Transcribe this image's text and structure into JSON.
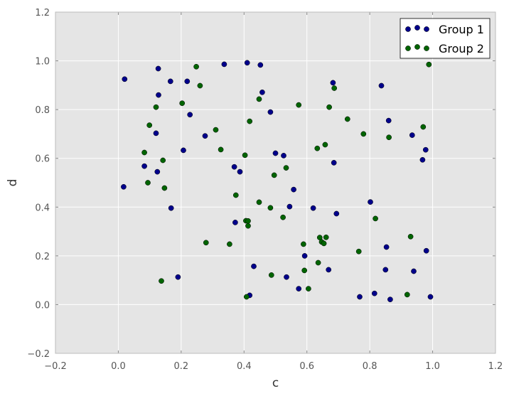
{
  "chart_data": {
    "type": "scatter",
    "title": "",
    "xlabel": "c",
    "ylabel": "d",
    "xlim": [
      -0.2,
      1.2
    ],
    "ylim": [
      -0.2,
      1.2
    ],
    "xticks": [
      "−0.2",
      "0.0",
      "0.2",
      "0.4",
      "0.6",
      "0.8",
      "1.0",
      "1.2"
    ],
    "yticks": [
      "−0.2",
      "0.0",
      "0.2",
      "0.4",
      "0.6",
      "0.8",
      "1.0",
      "1.2"
    ],
    "grid": true,
    "legend": "top-right",
    "colors": {
      "background": "#e5e5e5",
      "grid": "#ffffff",
      "group1": "#00008b",
      "group2": "#006400"
    },
    "series": [
      {
        "name": "Group 1",
        "color": "#00008b",
        "points": [
          [
            0.02,
            0.925
          ],
          [
            0.017,
            0.483
          ],
          [
            0.127,
            0.968
          ],
          [
            0.128,
            0.86
          ],
          [
            0.166,
            0.916
          ],
          [
            0.219,
            0.916
          ],
          [
            0.12,
            0.703
          ],
          [
            0.083,
            0.568
          ],
          [
            0.124,
            0.545
          ],
          [
            0.207,
            0.633
          ],
          [
            0.228,
            0.779
          ],
          [
            0.276,
            0.692
          ],
          [
            0.168,
            0.396
          ],
          [
            0.19,
            0.113
          ],
          [
            0.337,
            0.986
          ],
          [
            0.41,
            0.992
          ],
          [
            0.452,
            0.983
          ],
          [
            0.458,
            0.871
          ],
          [
            0.484,
            0.79
          ],
          [
            0.369,
            0.565
          ],
          [
            0.387,
            0.545
          ],
          [
            0.372,
            0.337
          ],
          [
            0.5,
            0.621
          ],
          [
            0.526,
            0.611
          ],
          [
            0.558,
            0.472
          ],
          [
            0.545,
            0.402
          ],
          [
            0.431,
            0.157
          ],
          [
            0.418,
            0.038
          ],
          [
            0.535,
            0.113
          ],
          [
            0.574,
            0.065
          ],
          [
            0.593,
            0.2
          ],
          [
            0.62,
            0.396
          ],
          [
            0.669,
            0.143
          ],
          [
            0.683,
            0.91
          ],
          [
            0.686,
            0.582
          ],
          [
            0.694,
            0.373
          ],
          [
            0.768,
            0.032
          ],
          [
            0.802,
            0.421
          ],
          [
            0.815,
            0.046
          ],
          [
            0.837,
            0.898
          ],
          [
            0.86,
            0.755
          ],
          [
            0.853,
            0.236
          ],
          [
            0.85,
            0.143
          ],
          [
            0.865,
            0.021
          ],
          [
            0.935,
            0.695
          ],
          [
            0.978,
            0.635
          ],
          [
            0.968,
            0.594
          ],
          [
            0.98,
            0.221
          ],
          [
            0.94,
            0.137
          ],
          [
            0.993,
            0.032
          ]
        ]
      },
      {
        "name": "Group 2",
        "color": "#006400",
        "points": [
          [
            0.099,
            0.736
          ],
          [
            0.12,
            0.81
          ],
          [
            0.083,
            0.624
          ],
          [
            0.142,
            0.592
          ],
          [
            0.094,
            0.5
          ],
          [
            0.147,
            0.478
          ],
          [
            0.137,
            0.097
          ],
          [
            0.203,
            0.826
          ],
          [
            0.248,
            0.976
          ],
          [
            0.26,
            0.898
          ],
          [
            0.31,
            0.717
          ],
          [
            0.326,
            0.636
          ],
          [
            0.279,
            0.254
          ],
          [
            0.354,
            0.248
          ],
          [
            0.374,
            0.449
          ],
          [
            0.403,
            0.613
          ],
          [
            0.418,
            0.752
          ],
          [
            0.448,
            0.843
          ],
          [
            0.406,
            0.344
          ],
          [
            0.413,
            0.343
          ],
          [
            0.413,
            0.323
          ],
          [
            0.408,
            0.032
          ],
          [
            0.448,
            0.42
          ],
          [
            0.484,
            0.397
          ],
          [
            0.496,
            0.531
          ],
          [
            0.524,
            0.358
          ],
          [
            0.534,
            0.561
          ],
          [
            0.487,
            0.121
          ],
          [
            0.574,
            0.819
          ],
          [
            0.589,
            0.248
          ],
          [
            0.592,
            0.14
          ],
          [
            0.605,
            0.065
          ],
          [
            0.633,
            0.641
          ],
          [
            0.658,
            0.656
          ],
          [
            0.671,
            0.81
          ],
          [
            0.687,
            0.888
          ],
          [
            0.641,
            0.275
          ],
          [
            0.647,
            0.257
          ],
          [
            0.654,
            0.251
          ],
          [
            0.661,
            0.276
          ],
          [
            0.636,
            0.172
          ],
          [
            0.729,
            0.761
          ],
          [
            0.78,
            0.7
          ],
          [
            0.765,
            0.218
          ],
          [
            0.818,
            0.353
          ],
          [
            0.861,
            0.686
          ],
          [
            0.919,
            0.041
          ],
          [
            0.93,
            0.279
          ],
          [
            0.97,
            0.729
          ],
          [
            0.988,
            0.985
          ]
        ]
      }
    ]
  }
}
